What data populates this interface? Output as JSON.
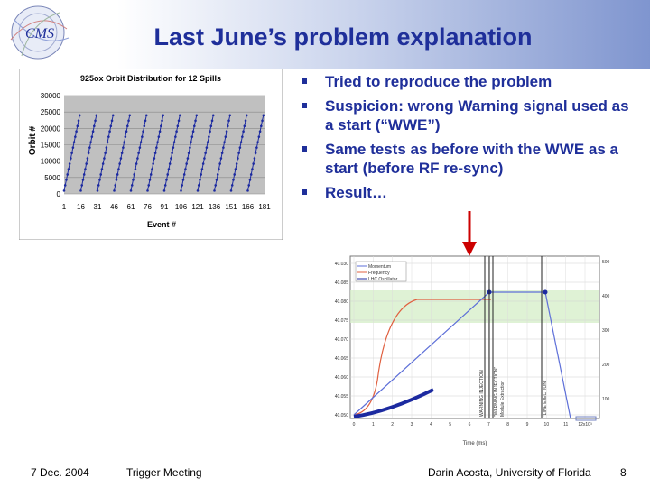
{
  "slide": {
    "title": "Last June’s problem explanation",
    "bullets": [
      "Tried to reproduce the problem",
      "Suspicion: wrong Warning signal used as a start (“WWE”)",
      "Same tests as before with the WWE as a start (before RF re-sync)",
      "Result…"
    ]
  },
  "logo": {
    "text": "CMS"
  },
  "footer": {
    "date": "7 Dec. 2004",
    "event": "Trigger Meeting",
    "author": "Darin Acosta, University of Florida",
    "page": "8"
  },
  "colors": {
    "title": "#1f2f9a",
    "series": "#1c2aa0",
    "plot_bg": "#c0c0c0",
    "arrow": "#cc0000",
    "band": "#d7efcb"
  },
  "chart_data": [
    {
      "type": "line",
      "title": "925ox Orbit Distribution for 12 Spills",
      "xlabel": "Event #",
      "ylabel": "Orbit #",
      "x_ticks": [
        "1",
        "16",
        "31",
        "46",
        "61",
        "76",
        "91",
        "106",
        "121",
        "136",
        "151",
        "166",
        "181"
      ],
      "y_ticks": [
        "0",
        "5000",
        "10000",
        "15000",
        "20000",
        "25000",
        "30000"
      ],
      "ylim": [
        0,
        30000
      ],
      "xlim": [
        1,
        181
      ],
      "grid": true,
      "pattern": "sawtooth",
      "spills": 12,
      "spill_length": 15,
      "ymin_per_spill": 1000,
      "ymax_per_spill": 24000
    },
    {
      "type": "line",
      "xlabel": "Time (ms)",
      "y_left_ticks": [
        "40.030",
        "40.085",
        "40.080",
        "40.075",
        "40.070",
        "40.065",
        "40.060",
        "40.055",
        "40.050"
      ],
      "y_right_ticks": [
        "500",
        "400",
        "300",
        "200",
        "100"
      ],
      "x_ticks": [
        "0",
        "1",
        "2",
        "3",
        "4",
        "5",
        "6",
        "7",
        "8",
        "9",
        "10",
        "11",
        "12"
      ],
      "x_suffix": "x10³",
      "legend": [
        "Momentum",
        "Frequency",
        "LHC Oscillator"
      ],
      "annotations": [
        "WARNING INJECTION",
        "\"WARNING INJECTION\"",
        "Module Extraction",
        "\"LINE EJECTION\""
      ]
    }
  ]
}
